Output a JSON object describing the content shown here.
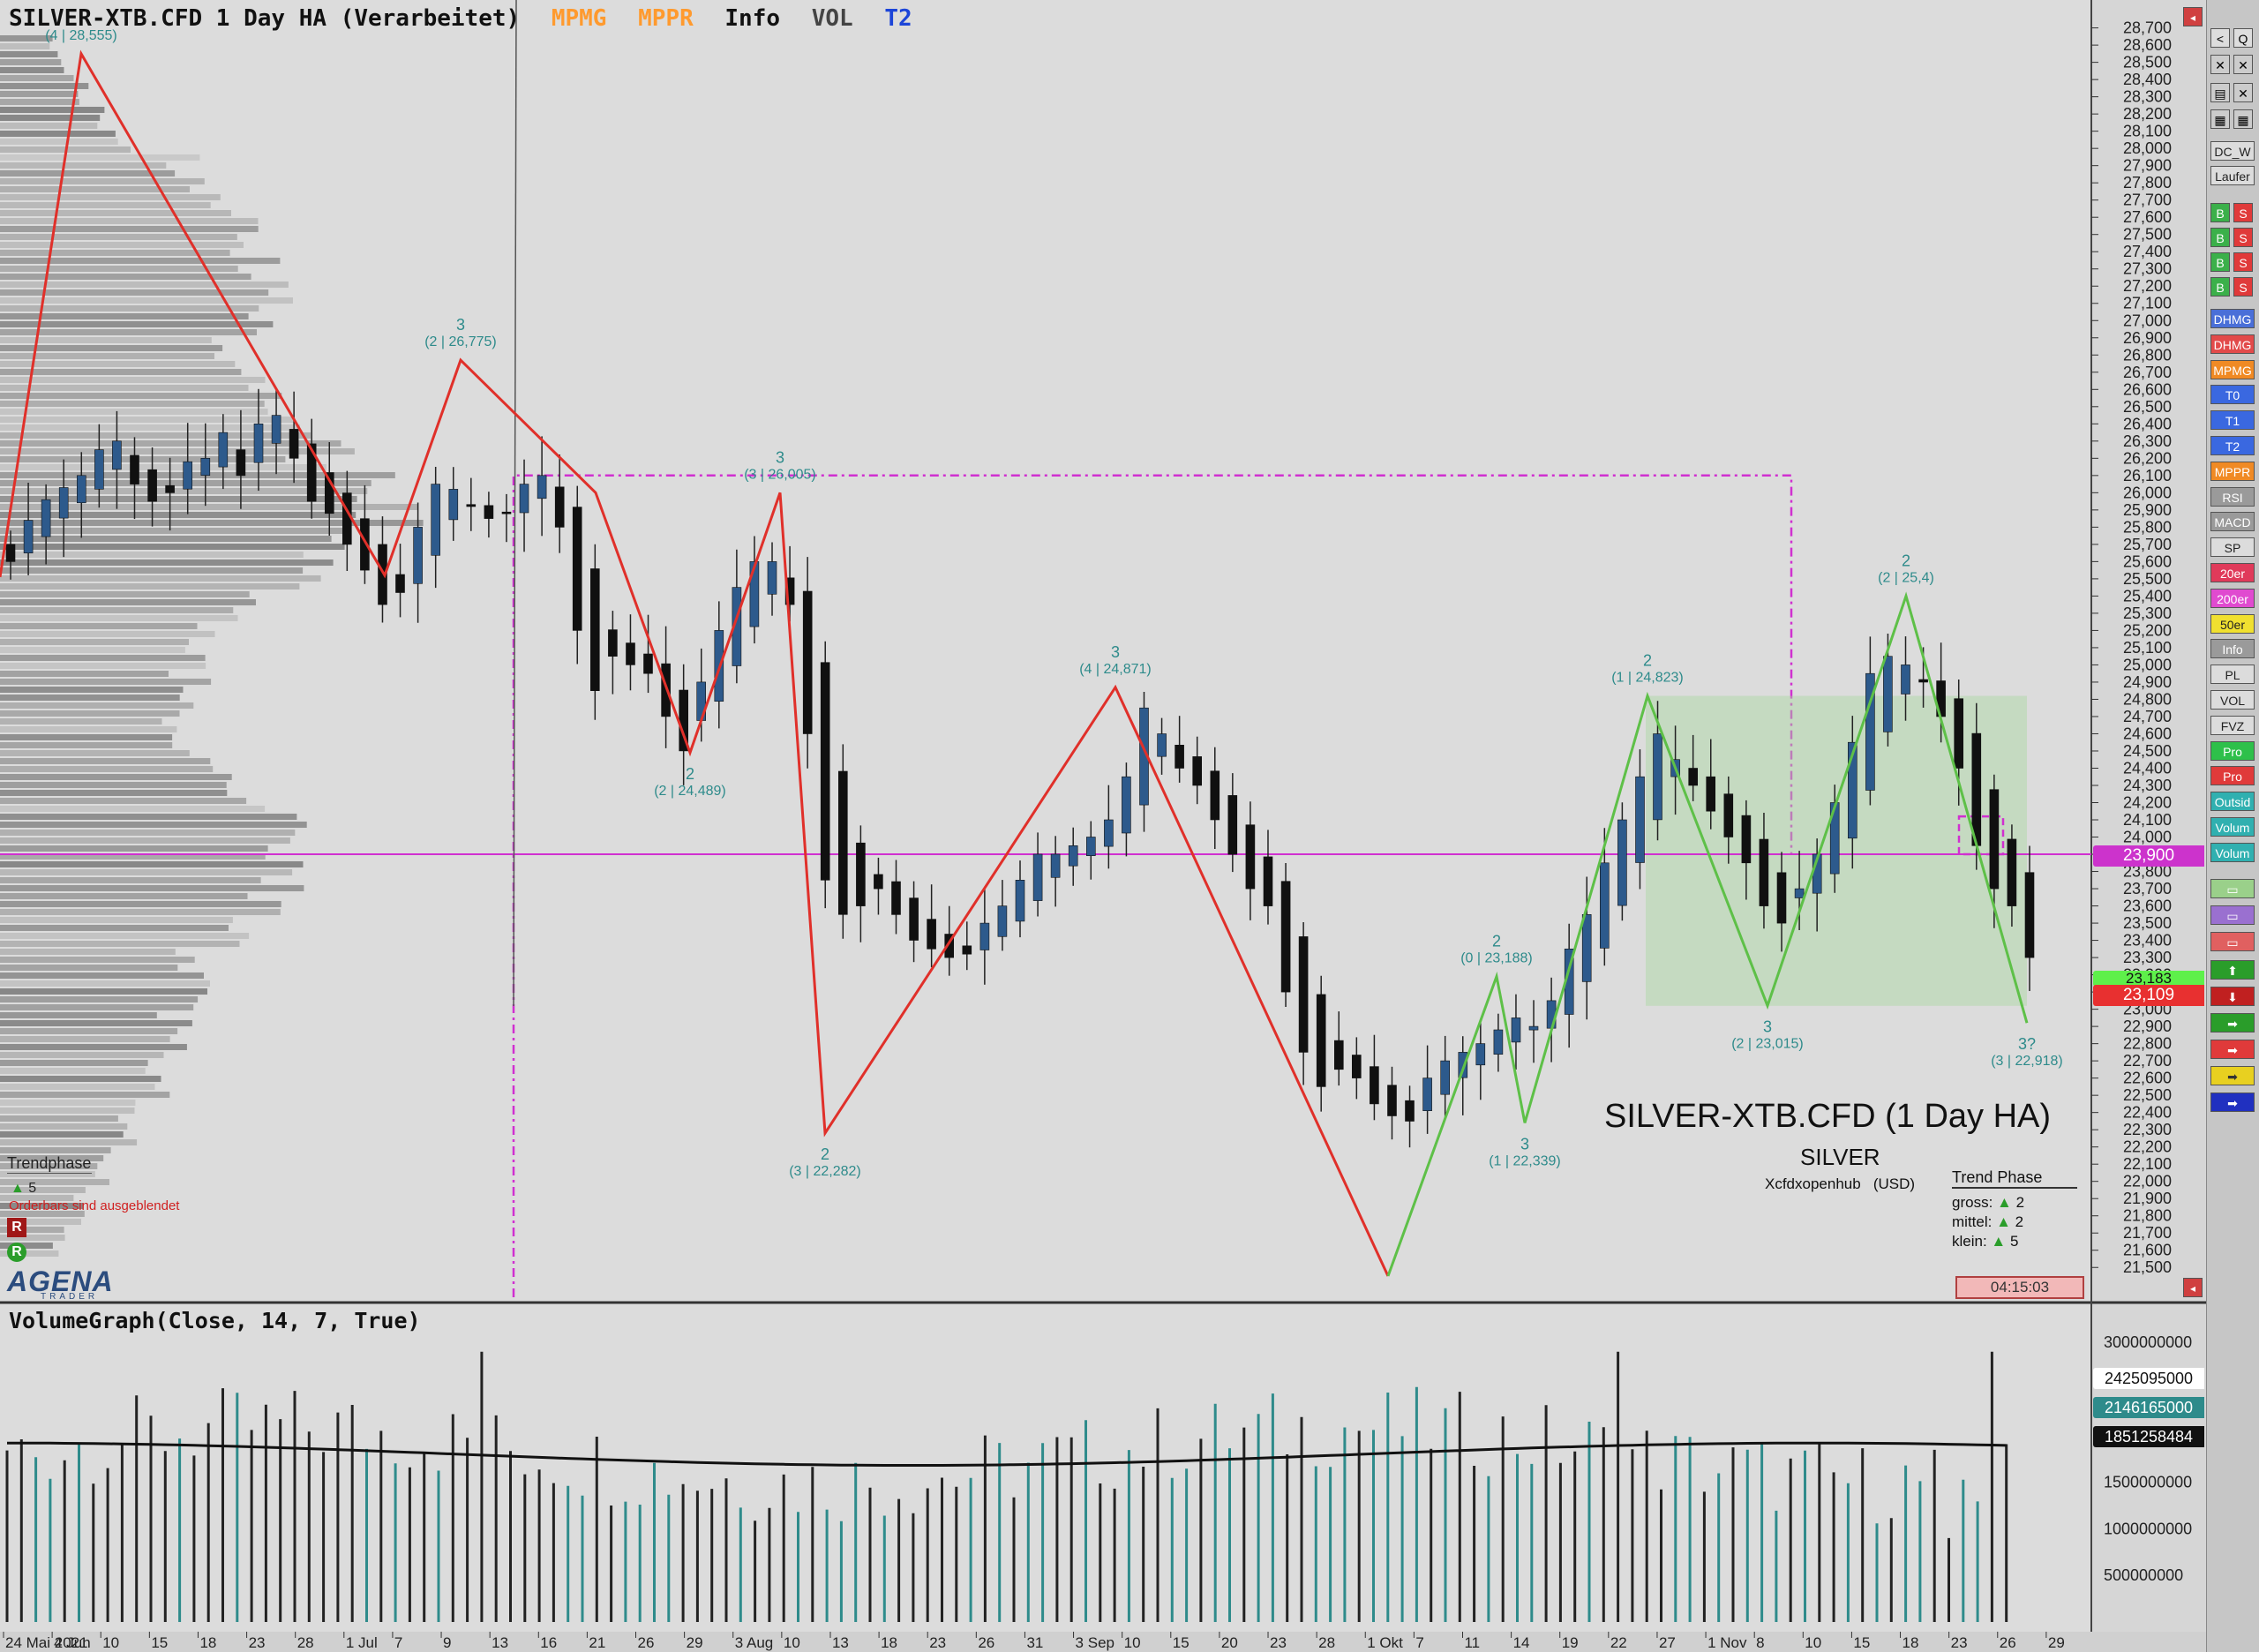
{
  "header": {
    "title": "SILVER-XTB.CFD 1 Day HA (Verarbeitet)",
    "indicators": [
      {
        "label": "MPMG",
        "color": "#ff9a2e"
      },
      {
        "label": "MPPR",
        "color": "#ff9a2e"
      },
      {
        "label": "Info",
        "color": "#111111"
      },
      {
        "label": "VOL",
        "color": "#444444"
      },
      {
        "label": "T2",
        "color": "#1c45d8"
      }
    ]
  },
  "overlay": {
    "big_title": "SILVER-XTB.CFD (1 Day HA)",
    "symbol": "SILVER",
    "source": "Xcfdxopenhub   (USD)",
    "trend_phase_title": "Trend Phase",
    "trend_rows": [
      {
        "label": "gross:",
        "value": "2"
      },
      {
        "label": "mittel:",
        "value": "2"
      },
      {
        "label": "klein:",
        "value": "5"
      }
    ],
    "timer": "04:15:03",
    "left_trendphase": "Trendphase",
    "left_trend_value": "5",
    "orderbars": "Orderbars sind ausgeblendet",
    "r_label": "R",
    "logo": "AGENA",
    "logo_sub": "TRADER"
  },
  "volume": {
    "title": "VolumeGraph(Close, 14, 7, True)",
    "yticks": [
      "3000000000",
      "1500000000",
      "1000000000",
      "500000000"
    ],
    "badges": [
      {
        "value": "2425095000",
        "color": "#ffffff"
      },
      {
        "value": "2146165000",
        "color": "#2e8b8b"
      },
      {
        "value": "1851258484",
        "color": "#111111"
      }
    ]
  },
  "price_badges": [
    {
      "value": "23,900",
      "color": "#cc33cc"
    },
    {
      "value": "23,183",
      "color": "#5ef04a"
    },
    {
      "value": "23,109",
      "color": "#e83030"
    }
  ],
  "toolbar": {
    "top_icons": [
      "<",
      "Q"
    ],
    "buttons": [
      {
        "label": "DC_W",
        "color": "#dcdcdc"
      },
      {
        "label": "Laufer",
        "color": "#dcdcdc"
      },
      {
        "label": "DHMG",
        "color": "#4a6fd8"
      },
      {
        "label": "DHMG",
        "color": "#e24a4a"
      },
      {
        "label": "MPMG",
        "color": "#f08a24"
      },
      {
        "label": "T0",
        "color": "#3a68e0"
      },
      {
        "label": "T1",
        "color": "#3a68e0"
      },
      {
        "label": "T2",
        "color": "#3a68e0"
      },
      {
        "label": "MPPR",
        "color": "#f08a24"
      },
      {
        "label": "RSI",
        "color": "#9a9a9a"
      },
      {
        "label": "MACD",
        "color": "#9a9a9a"
      },
      {
        "label": "SP",
        "color": "#dcdcdc"
      },
      {
        "label": "20er",
        "color": "#e03a5a"
      },
      {
        "label": "200er",
        "color": "#e04ad0"
      },
      {
        "label": "50er",
        "color": "#f0e030"
      },
      {
        "label": "Info",
        "color": "#9a9a9a"
      },
      {
        "label": "PL",
        "color": "#dcdcdc"
      },
      {
        "label": "VOL",
        "color": "#dcdcdc"
      },
      {
        "label": "FVZ",
        "color": "#dcdcdc"
      },
      {
        "label": "Pro",
        "color": "#2ec04a"
      },
      {
        "label": "Pro",
        "color": "#e03a3a"
      },
      {
        "label": "Outsid",
        "color": "#30b0b0"
      },
      {
        "label": "Volum",
        "color": "#30b0b0"
      },
      {
        "label": "Volum",
        "color": "#30b0b0"
      }
    ],
    "bs_buy": "B",
    "bs_sell": "S"
  },
  "chart_data": {
    "type": "candlestick",
    "title": "SILVER-XTB.CFD 1 Day HA (Verarbeitet)",
    "ylim": [
      21.45,
      28.78
    ],
    "y_ticks": [
      "28,700",
      "28,600",
      "28,500",
      "28,400",
      "28,300",
      "28,200",
      "28,100",
      "28,000",
      "27,900",
      "27,800",
      "27,700",
      "27,600",
      "27,500",
      "27,400",
      "27,300",
      "27,200",
      "27,100",
      "27,000",
      "26,900",
      "26,800",
      "26,700",
      "26,600",
      "26,500",
      "26,400",
      "26,300",
      "26,200",
      "26,100",
      "26,000",
      "25,900",
      "25,800",
      "25,700",
      "25,600",
      "25,500",
      "25,400",
      "25,300",
      "25,200",
      "25,100",
      "25,000",
      "24,900",
      "24,800",
      "24,700",
      "24,600",
      "24,500",
      "24,400",
      "24,300",
      "24,200",
      "24,100",
      "24,000",
      "23,900",
      "23,800",
      "23,700",
      "23,600",
      "23,500",
      "23,400",
      "23,300",
      "23,200",
      "23,100",
      "23,000",
      "22,900",
      "22,800",
      "22,700",
      "22,600",
      "22,500",
      "22,400",
      "22,300",
      "22,200",
      "22,100",
      "22,000",
      "21,900",
      "21,800",
      "21,700",
      "21,600",
      "21,500"
    ],
    "x_ticks": [
      "24 Mai 2021",
      "4 Jun",
      "10",
      "15",
      "18",
      "23",
      "28",
      "1 Jul",
      "7",
      "9",
      "13",
      "16",
      "21",
      "26",
      "29",
      "3 Aug",
      "10",
      "13",
      "18",
      "23",
      "26",
      "31",
      "3 Sep",
      "10",
      "15",
      "20",
      "23",
      "28",
      "1 Okt",
      "7",
      "11",
      "14",
      "19",
      "22",
      "27",
      "1 Nov",
      "8",
      "10",
      "15",
      "18",
      "23",
      "26",
      "29"
    ],
    "closes": [
      25.6,
      25.84,
      25.96,
      26.03,
      26.1,
      26.25,
      26.3,
      26.05,
      25.95,
      26.0,
      26.18,
      26.2,
      26.35,
      26.1,
      26.4,
      26.45,
      26.2,
      25.95,
      25.88,
      25.7,
      25.55,
      25.35,
      25.42,
      25.8,
      26.05,
      26.02,
      25.92,
      25.85,
      25.88,
      26.05,
      26.1,
      25.8,
      25.2,
      24.85,
      25.05,
      25.0,
      24.95,
      24.7,
      24.5,
      24.9,
      25.2,
      25.45,
      25.6,
      25.6,
      25.35,
      24.6,
      23.75,
      23.55,
      23.6,
      23.7,
      23.55,
      23.4,
      23.35,
      23.3,
      23.32,
      23.5,
      23.6,
      23.75,
      23.9,
      23.9,
      23.95,
      24.0,
      24.1,
      24.35,
      24.75,
      24.6,
      24.4,
      24.3,
      24.1,
      23.9,
      23.7,
      23.6,
      23.1,
      22.75,
      22.55,
      22.65,
      22.6,
      22.45,
      22.38,
      22.35,
      22.6,
      22.7,
      22.75,
      22.8,
      22.88,
      22.95,
      22.9,
      23.05,
      23.35,
      23.55,
      23.85,
      24.1,
      24.35,
      24.6,
      24.45,
      24.3,
      24.15,
      24.0,
      23.85,
      23.6,
      23.5,
      23.7,
      23.9,
      24.2,
      24.55,
      24.95,
      25.05,
      25.0,
      24.9,
      24.7,
      24.4,
      23.95,
      23.7,
      23.6,
      23.3
    ],
    "zigzag_red": [
      {
        "price": 25.51,
        "label": "",
        "sub": ""
      },
      {
        "price": 28.55,
        "label": "",
        "sub": "(4 | 28,555)"
      },
      {
        "price": 25.52,
        "label": "",
        "sub": ""
      },
      {
        "price": 26.77,
        "label": "3",
        "sub": "(2 | 26,775)"
      },
      {
        "price": 26.0,
        "label": "",
        "sub": ""
      },
      {
        "price": 24.49,
        "label": "2",
        "sub": "(2 | 24,489)"
      },
      {
        "price": 26.0,
        "label": "3",
        "sub": "(3 | 26,005)"
      },
      {
        "price": 22.28,
        "label": "2",
        "sub": "(3 | 22,282)"
      },
      {
        "price": 24.87,
        "label": "3",
        "sub": "(4 | 24,871)"
      },
      {
        "price": 21.45,
        "label": "",
        "sub": ""
      }
    ],
    "zigzag_green": [
      {
        "price": 21.45,
        "label": "",
        "sub": ""
      },
      {
        "price": 23.19,
        "label": "2",
        "sub": "(0 | 23,188)"
      },
      {
        "price": 22.34,
        "label": "3",
        "sub": "(1 | 22,339)"
      },
      {
        "price": 24.82,
        "label": "2",
        "sub": "(1 | 24,823)"
      },
      {
        "price": 23.02,
        "label": "3",
        "sub": "(2 | 23,015)"
      },
      {
        "price": 25.4,
        "label": "2",
        "sub": "(2 | 25,4)"
      },
      {
        "price": 22.92,
        "label": "3?",
        "sub": "(3 | 22,918)"
      }
    ],
    "magenta_level": 23.9,
    "magenta_box_top": 26.1,
    "green_box": {
      "top": 24.82,
      "bottom": 23.02
    },
    "volume_avg_label": "VolumeGraph(Close, 14, 7, True)"
  }
}
